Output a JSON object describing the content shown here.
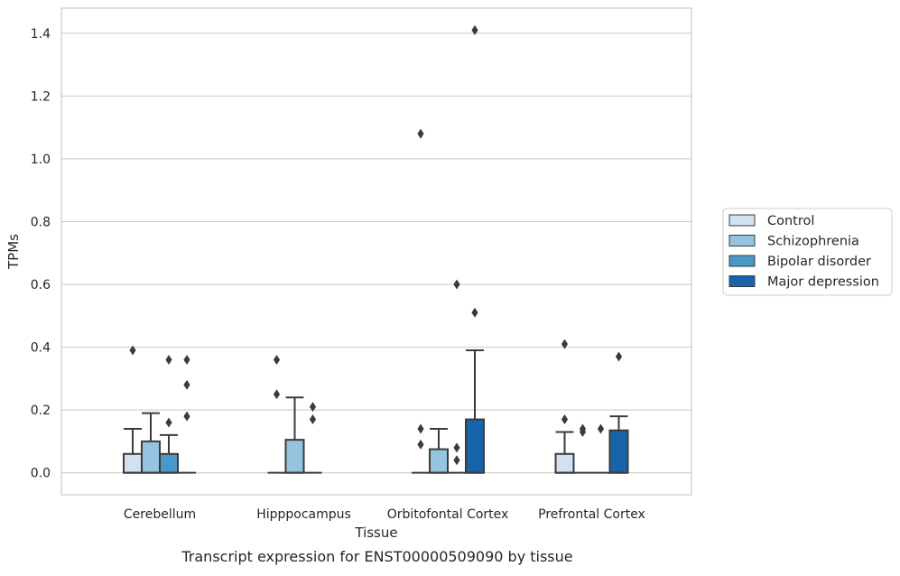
{
  "caption": "Transcript expression for ENST00000509090 by tissue",
  "chart_data": {
    "type": "box",
    "xlabel": "Tissue",
    "ylabel": "TPMs",
    "ylim": [
      -0.07,
      1.48
    ],
    "yticks": [
      0.0,
      0.2,
      0.4,
      0.6,
      0.8,
      1.0,
      1.2,
      1.4
    ],
    "grid": "horizontal",
    "legend_position": "right",
    "categories": [
      "Cerebellum",
      "Hipppocampus",
      "Orbitofontal Cortex",
      "Prefrontal Cortex"
    ],
    "series": [
      {
        "name": "Control",
        "color": "#d0e1f2",
        "boxes": [
          {
            "q1": 0.0,
            "median": 0.0,
            "q3": 0.06,
            "whislo": 0.0,
            "whishi": 0.14,
            "fliers": [
              0.39
            ]
          },
          {
            "q1": 0.0,
            "median": 0.0,
            "q3": 0.0,
            "whislo": 0.0,
            "whishi": 0.0,
            "fliers": [
              0.36,
              0.25
            ]
          },
          {
            "q1": 0.0,
            "median": 0.0,
            "q3": 0.0,
            "whislo": 0.0,
            "whishi": 0.0,
            "fliers": [
              1.08,
              0.14,
              0.09
            ]
          },
          {
            "q1": 0.0,
            "median": 0.0,
            "q3": 0.06,
            "whislo": 0.0,
            "whishi": 0.13,
            "fliers": [
              0.41,
              0.17
            ]
          }
        ]
      },
      {
        "name": "Schizophrenia",
        "color": "#94c4df",
        "boxes": [
          {
            "q1": 0.0,
            "median": 0.0,
            "q3": 0.1,
            "whislo": 0.0,
            "whishi": 0.19,
            "fliers": []
          },
          {
            "q1": 0.0,
            "median": 0.0,
            "q3": 0.105,
            "whislo": 0.0,
            "whishi": 0.24,
            "fliers": []
          },
          {
            "q1": 0.0,
            "median": 0.0,
            "q3": 0.075,
            "whislo": 0.0,
            "whishi": 0.14,
            "fliers": []
          },
          {
            "q1": 0.0,
            "median": 0.0,
            "q3": 0.0,
            "whislo": 0.0,
            "whishi": 0.0,
            "fliers": [
              0.14,
              0.13
            ]
          }
        ]
      },
      {
        "name": "Bipolar disorder",
        "color": "#4a98c9",
        "boxes": [
          {
            "q1": 0.0,
            "median": 0.0,
            "q3": 0.06,
            "whislo": 0.0,
            "whishi": 0.12,
            "fliers": [
              0.36,
              0.16
            ]
          },
          {
            "q1": 0.0,
            "median": 0.0,
            "q3": 0.0,
            "whislo": 0.0,
            "whishi": 0.0,
            "fliers": [
              0.21,
              0.17
            ]
          },
          {
            "q1": 0.0,
            "median": 0.0,
            "q3": 0.0,
            "whislo": 0.0,
            "whishi": 0.0,
            "fliers": [
              0.6,
              0.08,
              0.04
            ]
          },
          {
            "q1": 0.0,
            "median": 0.0,
            "q3": 0.0,
            "whislo": 0.0,
            "whishi": 0.0,
            "fliers": [
              0.14
            ]
          }
        ]
      },
      {
        "name": "Major depression",
        "color": "#1764ab",
        "boxes": [
          {
            "q1": 0.0,
            "median": 0.0,
            "q3": 0.0,
            "whislo": 0.0,
            "whishi": 0.0,
            "fliers": [
              0.36,
              0.28,
              0.18
            ]
          },
          null,
          {
            "q1": 0.0,
            "median": 0.0,
            "q3": 0.17,
            "whislo": 0.0,
            "whishi": 0.39,
            "fliers": [
              1.41,
              0.51
            ]
          },
          {
            "q1": 0.0,
            "median": 0.0,
            "q3": 0.135,
            "whislo": 0.0,
            "whishi": 0.18,
            "fliers": [
              0.37
            ]
          }
        ]
      }
    ]
  }
}
